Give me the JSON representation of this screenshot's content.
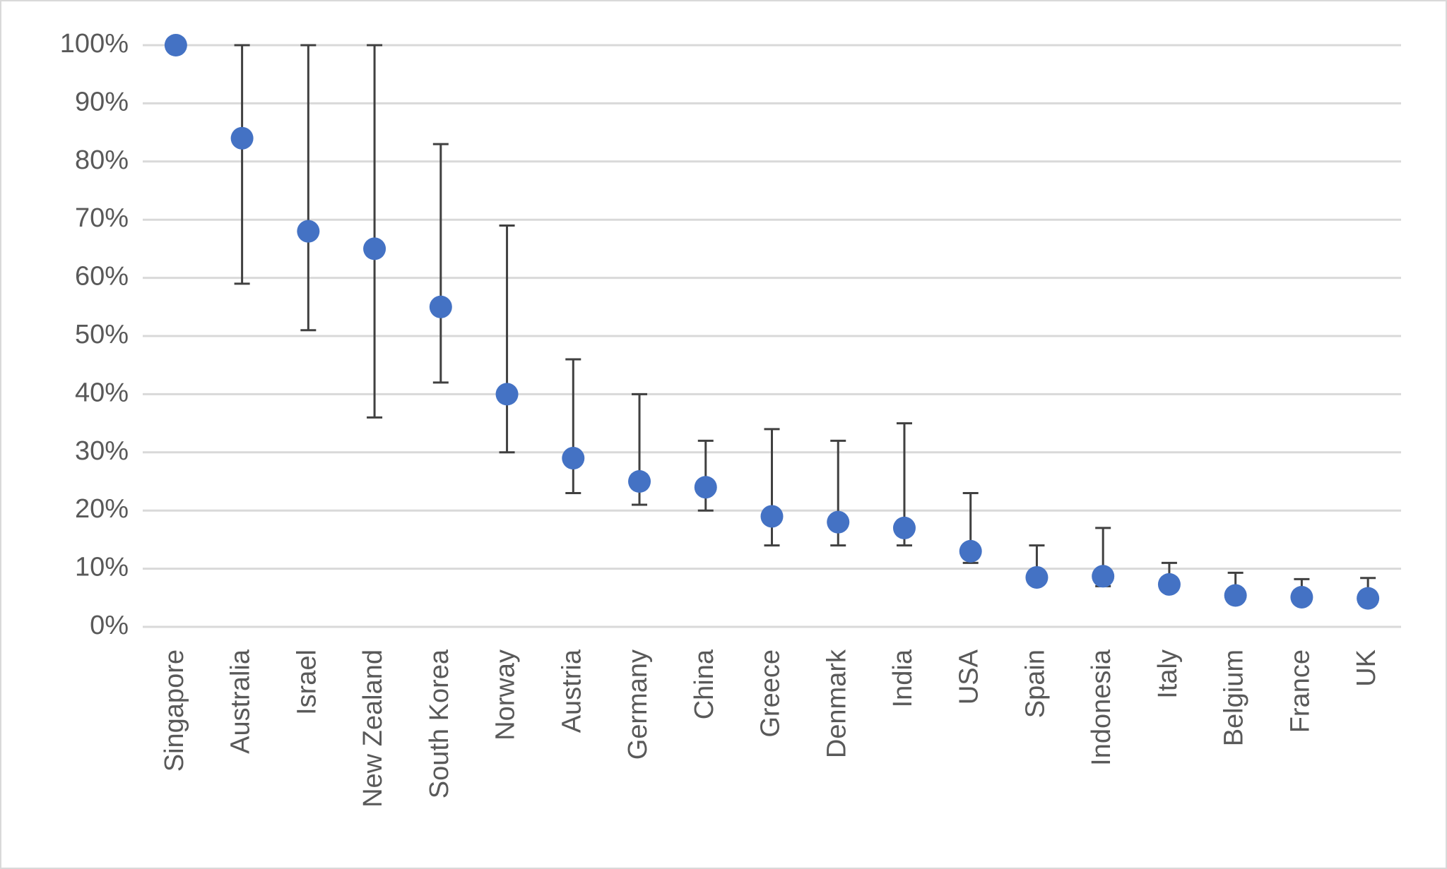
{
  "chart_data": {
    "type": "errorbar",
    "categories": [
      "Singapore",
      "Australia",
      "Israel",
      "New Zealand",
      "South Korea",
      "Norway",
      "Austria",
      "Germany",
      "China",
      "Greece",
      "Denmark",
      "India",
      "USA",
      "Spain",
      "Indonesia",
      "Italy",
      "Belgium",
      "France",
      "UK"
    ],
    "values": [
      100,
      84,
      68,
      65,
      55,
      40,
      29,
      25,
      24,
      19,
      18,
      17,
      13,
      8.5,
      8.7,
      7.3,
      5.4,
      5.1,
      4.9
    ],
    "lows": [
      null,
      59,
      51,
      36,
      42,
      30,
      23,
      21,
      20,
      14,
      14,
      14,
      11,
      7.4,
      7,
      7,
      5,
      5,
      4.9
    ],
    "highs": [
      null,
      100,
      100,
      100,
      83,
      69,
      46,
      40,
      32,
      34,
      32,
      35,
      23,
      14,
      17,
      11,
      9.3,
      8.2,
      8.4
    ],
    "color": "#4472c4",
    "error_color": "#404040",
    "ylim": [
      0,
      100
    ],
    "yticks": [
      {
        "value": 0,
        "label": "0%"
      },
      {
        "value": 10,
        "label": "10%"
      },
      {
        "value": 20,
        "label": "20%"
      },
      {
        "value": 30,
        "label": "30%"
      },
      {
        "value": 40,
        "label": "40%"
      },
      {
        "value": 50,
        "label": "50%"
      },
      {
        "value": 60,
        "label": "60%"
      },
      {
        "value": 70,
        "label": "70%"
      },
      {
        "value": 80,
        "label": "80%"
      },
      {
        "value": 90,
        "label": "90%"
      },
      {
        "value": 100,
        "label": "100%"
      }
    ],
    "grid": true
  }
}
